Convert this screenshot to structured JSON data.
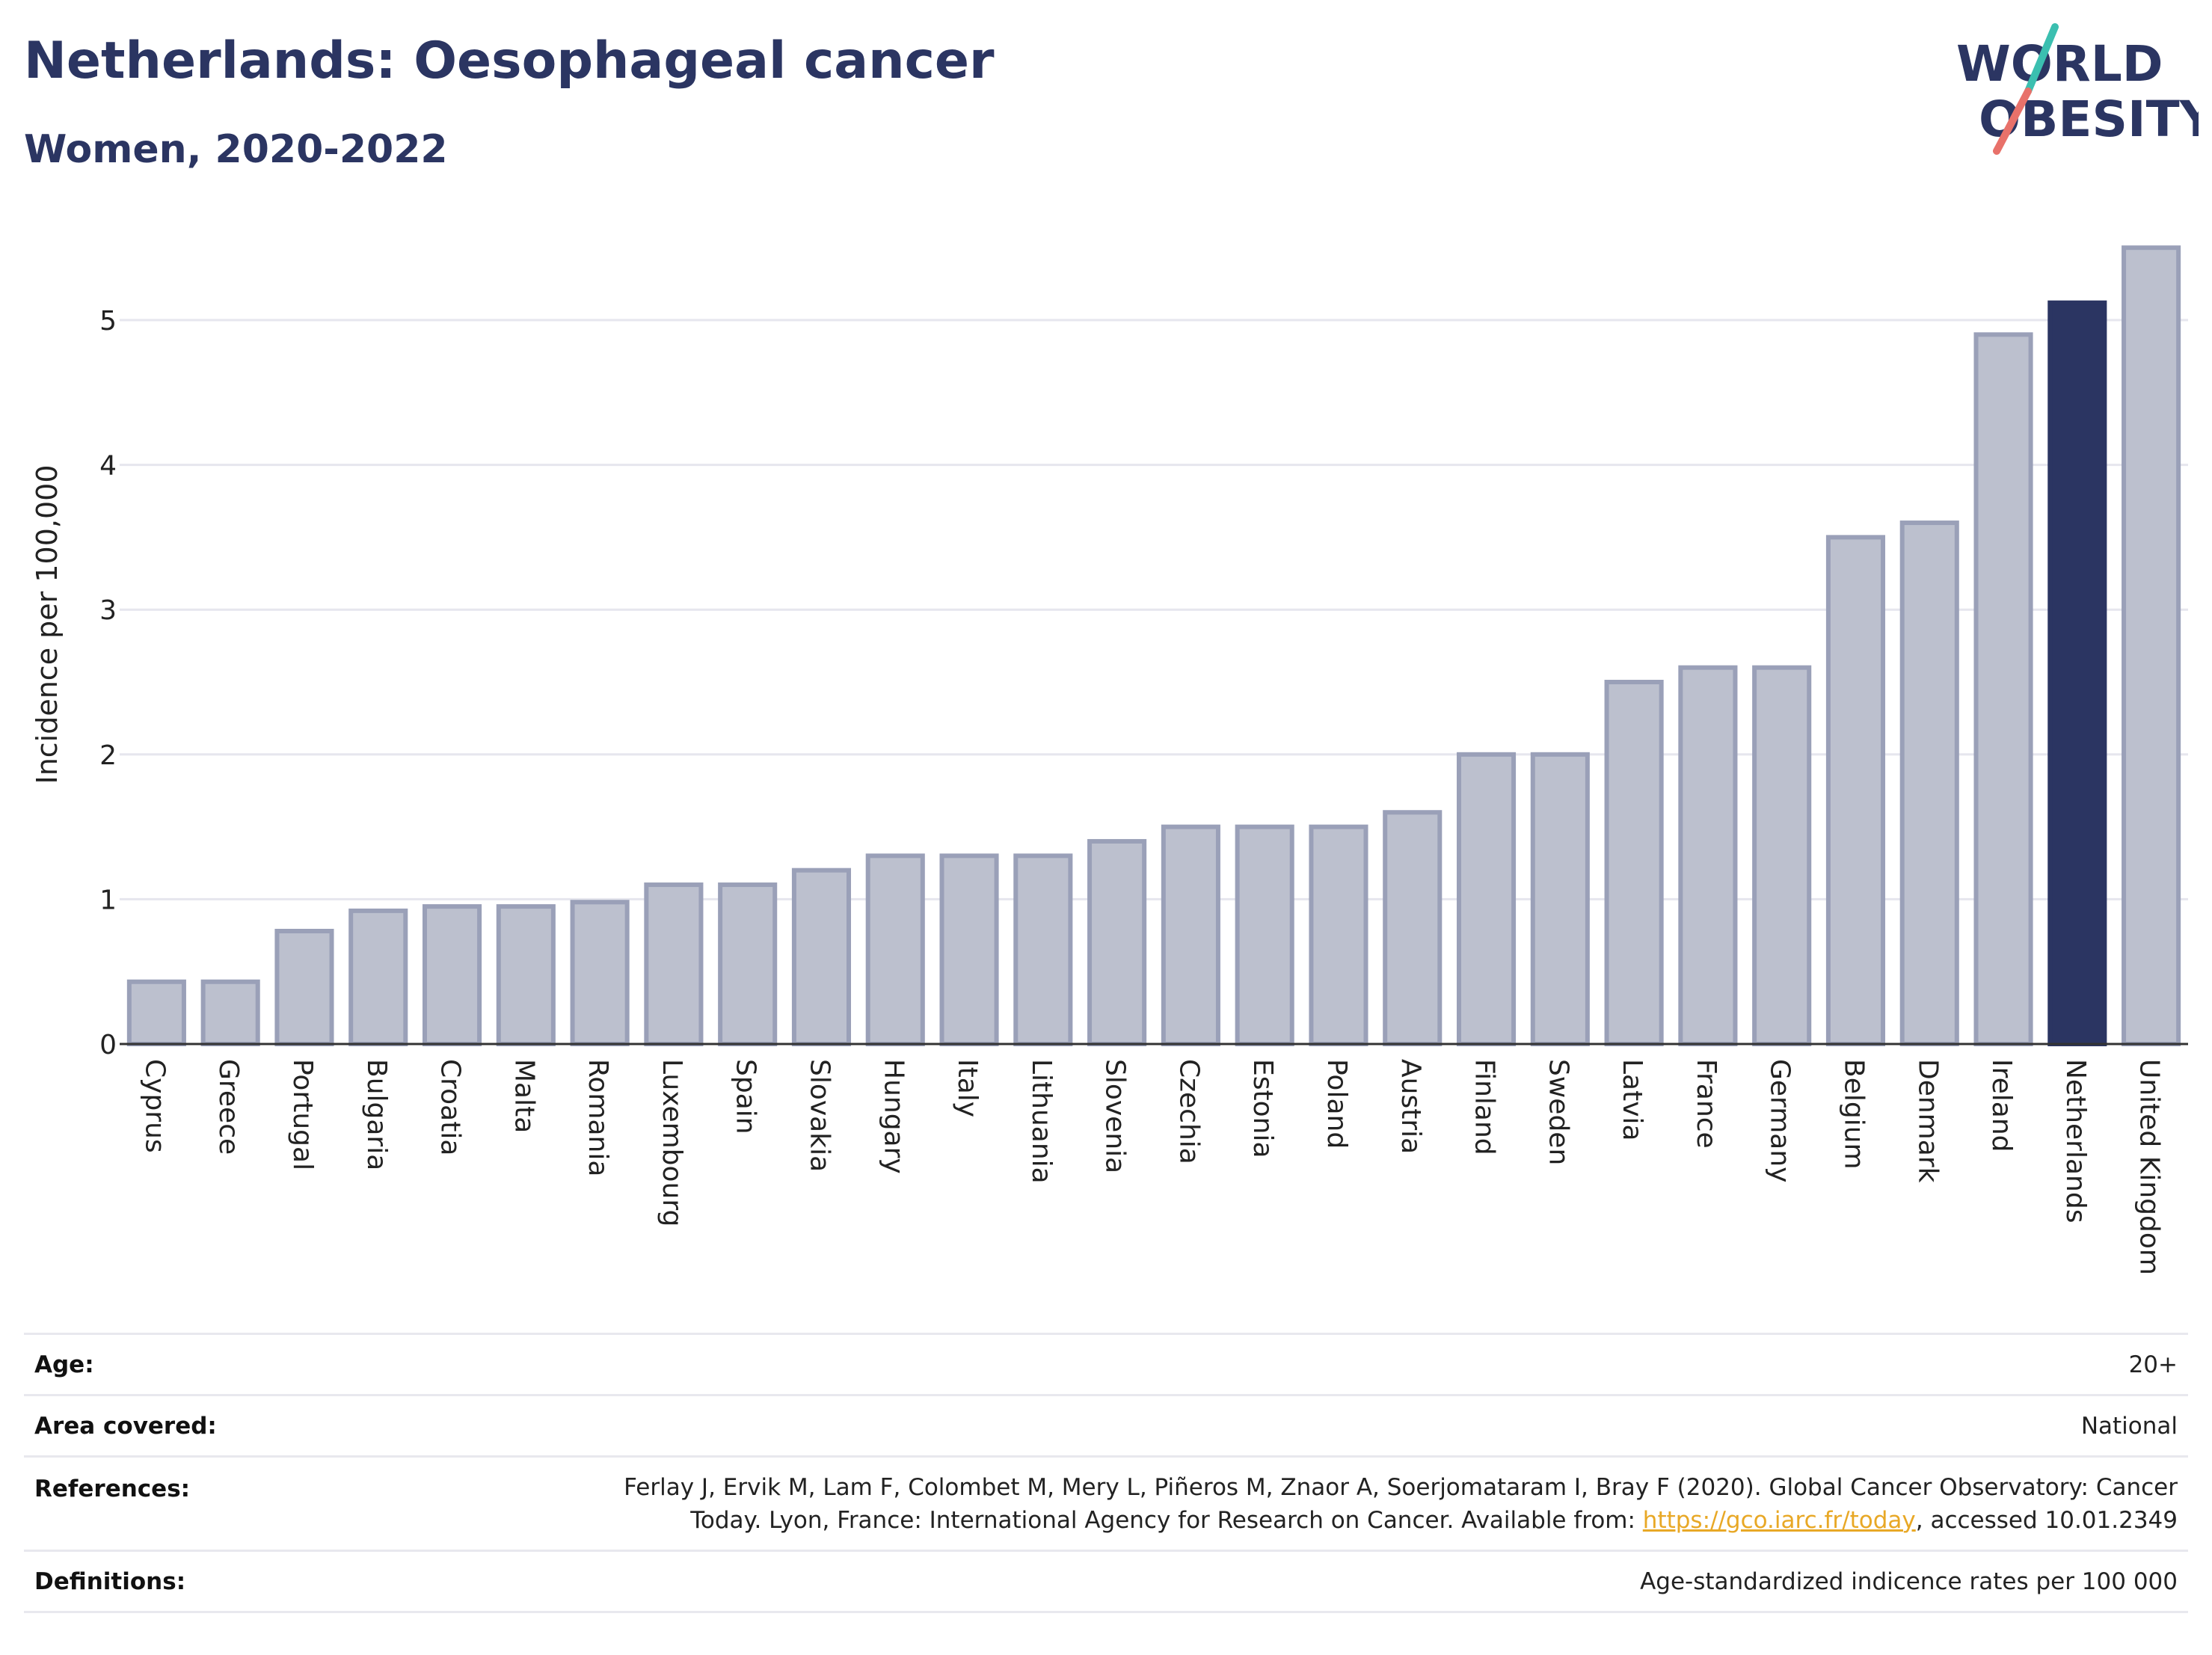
{
  "header": {
    "title": "Netherlands: Oesophageal cancer",
    "subtitle": "Women, 2020-2022"
  },
  "logo": {
    "line1": "WORLD",
    "line2": "OBESITY"
  },
  "colors": {
    "bar": "#bcc0ce",
    "bar_stroke": "#9aa0b8",
    "highlight": "#2b3562",
    "axis": "#333333",
    "grid": "#e6e6ee"
  },
  "chart_data": {
    "type": "bar",
    "ylabel": "Incidence per 100,000",
    "ylim": [
      0,
      5.5
    ],
    "yticks": [
      0,
      1,
      2,
      3,
      4,
      5
    ],
    "highlight": "Netherlands",
    "categories": [
      "Cyprus",
      "Greece",
      "Portugal",
      "Bulgaria",
      "Croatia",
      "Malta",
      "Romania",
      "Luxembourg",
      "Spain",
      "Slovakia",
      "Hungary",
      "Italy",
      "Lithuania",
      "Slovenia",
      "Czechia",
      "Estonia",
      "Poland",
      "Austria",
      "Finland",
      "Sweden",
      "Latvia",
      "France",
      "Germany",
      "Belgium",
      "Denmark",
      "Ireland",
      "Netherlands",
      "United Kingdom"
    ],
    "values": [
      0.43,
      0.43,
      0.78,
      0.92,
      0.95,
      0.95,
      0.98,
      1.1,
      1.1,
      1.2,
      1.3,
      1.3,
      1.3,
      1.4,
      1.5,
      1.5,
      1.5,
      1.6,
      2.0,
      2.0,
      2.5,
      2.6,
      2.6,
      3.5,
      3.6,
      4.9,
      5.12,
      5.5
    ]
  },
  "info": {
    "age_label": "Age:",
    "age_value": "20+",
    "area_label": "Area covered:",
    "area_value": "National",
    "refs_label": "References:",
    "refs_line1": "Ferlay J, Ervik M, Lam F, Colombet M, Mery L, Piñeros M, Znaor A, Soerjomataram I, Bray F (2020). Global Cancer Observatory: Cancer",
    "refs_line2a": "Today. Lyon, France: International Agency for Research on Cancer. Available from: ",
    "refs_link": "https://gco.iarc.fr/today",
    "refs_line2b": ", accessed 10.01.2349",
    "defs_label": "Definitions:",
    "defs_value": "Age-standardized indicence rates per 100 000"
  }
}
